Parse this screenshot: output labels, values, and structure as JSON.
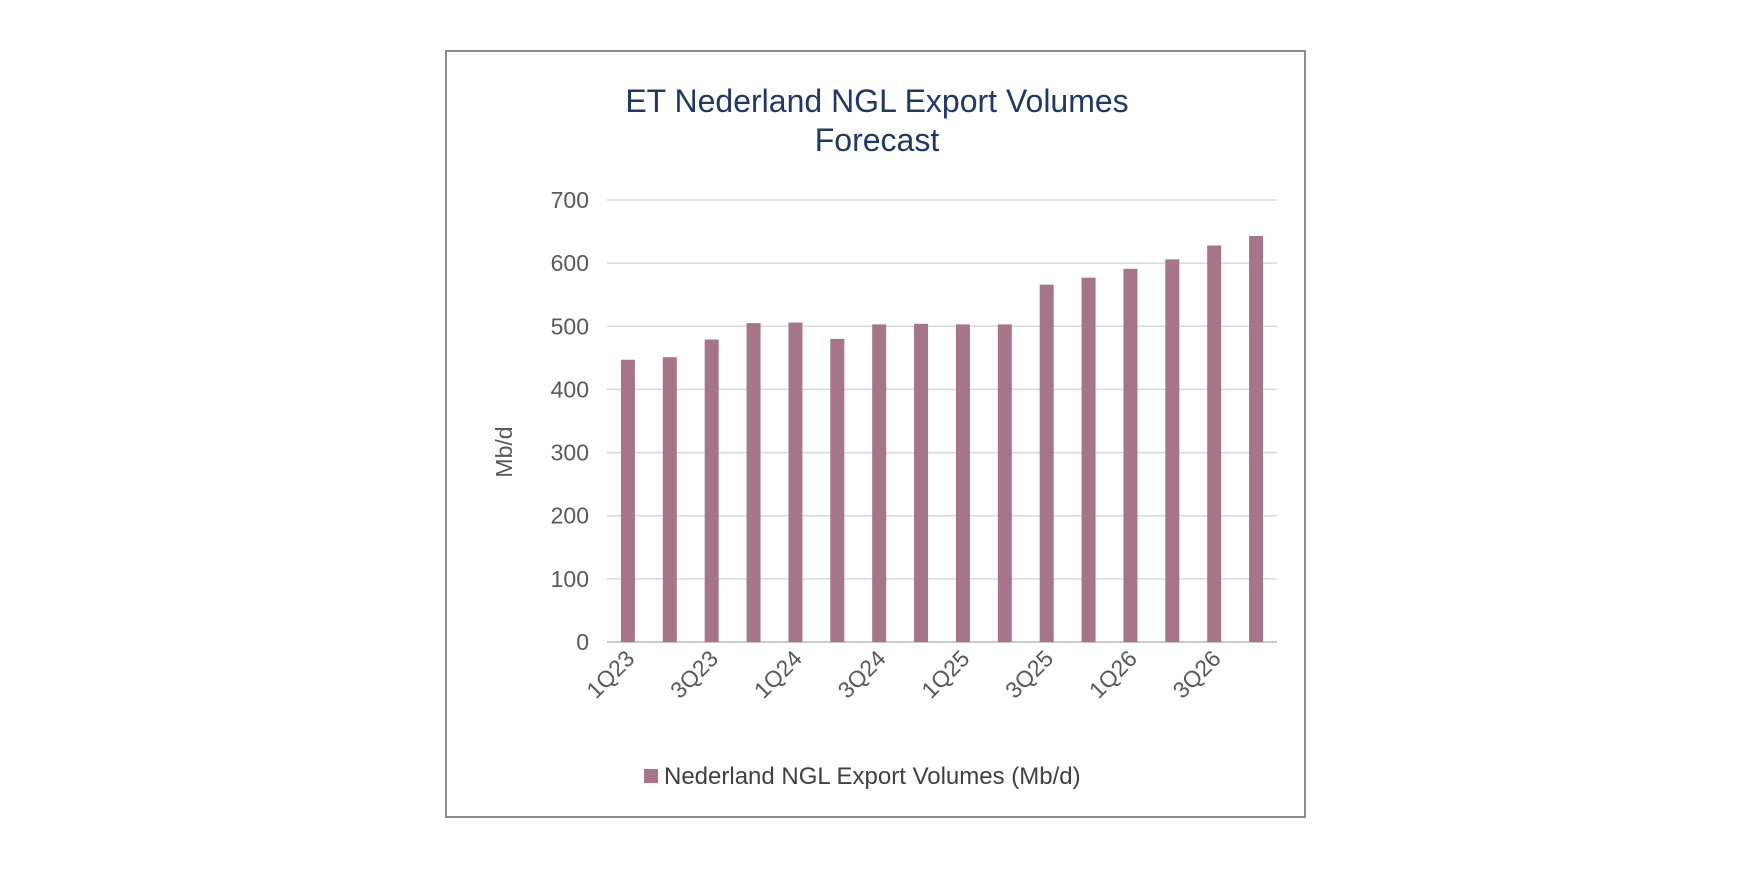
{
  "chart_data": {
    "type": "bar",
    "title_lines": [
      "ET Nederland NGL Export Volumes",
      "Forecast"
    ],
    "ylabel": "Mb/d",
    "xlabel": "",
    "categories": [
      "1Q23",
      "2Q23",
      "3Q23",
      "4Q23",
      "1Q24",
      "2Q24",
      "3Q24",
      "4Q24",
      "1Q25",
      "2Q25",
      "3Q25",
      "4Q25",
      "1Q26",
      "2Q26",
      "3Q26",
      "4Q26"
    ],
    "category_labels_shown": [
      "1Q23",
      "",
      "3Q23",
      "",
      "1Q24",
      "",
      "3Q24",
      "",
      "1Q25",
      "",
      "3Q25",
      "",
      "1Q26",
      "",
      "3Q26",
      ""
    ],
    "series": [
      {
        "name": "Nederland NGL Export Volumes (Mb/d)",
        "color": "#a67589",
        "values": [
          447,
          451,
          479,
          505,
          506,
          480,
          503,
          504,
          503,
          503,
          566,
          577,
          591,
          606,
          628,
          643
        ]
      }
    ],
    "ylim": [
      0,
      700
    ],
    "yticks": [
      0,
      100,
      200,
      300,
      400,
      500,
      600,
      700
    ],
    "ytick_labels": [
      "0",
      "100",
      "200",
      "300",
      "400",
      "500",
      "600",
      "700"
    ],
    "grid": true,
    "legend_position": "bottom"
  }
}
